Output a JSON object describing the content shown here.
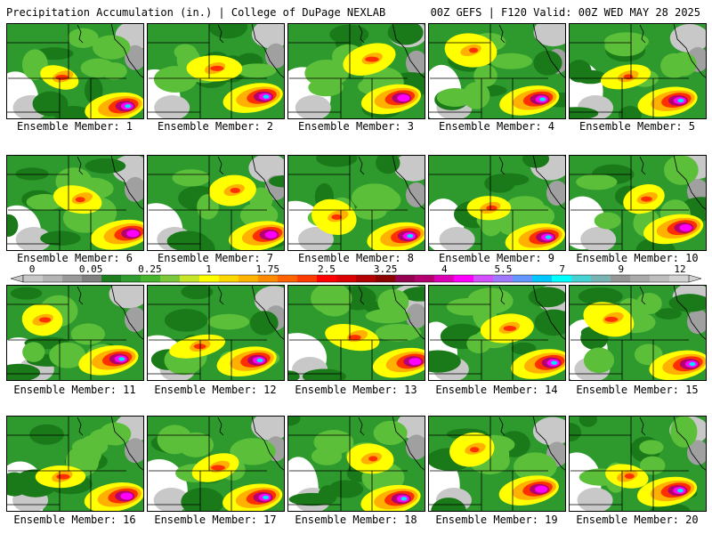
{
  "header": {
    "left": "Precipitation Accumulation (in.) | College of DuPage NEXLAB",
    "right": "00Z GEFS | F120 Valid: 00Z WED MAY 28 2025"
  },
  "member_label_prefix": "Ensemble Member: ",
  "members": [
    "1",
    "2",
    "3",
    "4",
    "5",
    "6",
    "7",
    "8",
    "9",
    "10",
    "11",
    "12",
    "13",
    "14",
    "15",
    "16",
    "17",
    "18",
    "19",
    "20"
  ],
  "colorbar": {
    "tick_labels": [
      "0",
      "0.05",
      "0.25",
      "1",
      "1.75",
      "2.5",
      "3.25",
      "4",
      "5.5",
      "7",
      "9",
      "12"
    ],
    "colors": [
      "#c8c8c8",
      "#b4b4b4",
      "#9a9a9a",
      "#808080",
      "#1e7d1e",
      "#2f9a2f",
      "#46b42e",
      "#7cc83c",
      "#c8e628",
      "#ffff00",
      "#ffd700",
      "#ffb400",
      "#ff8c00",
      "#ff6400",
      "#ff3c00",
      "#ff0000",
      "#dc0000",
      "#b40000",
      "#8c0000",
      "#960050",
      "#b4006e",
      "#dc00b4",
      "#ff00ff",
      "#d250ff",
      "#a078ff",
      "#6496ff",
      "#00c8ff",
      "#00ffff",
      "#46d2d2",
      "#78b4b4",
      "#969696",
      "#aaaaaa",
      "#bebebe",
      "#d2d2d2"
    ]
  },
  "chart_data": {
    "type": "heatmap",
    "title": "Precipitation Accumulation (in.) | College of DuPage NEXLAB",
    "subtitle": "00Z GEFS | F120 Valid: 00Z WED MAY 28 2025",
    "panels": [
      "Ensemble Member: 1",
      "Ensemble Member: 2",
      "Ensemble Member: 3",
      "Ensemble Member: 4",
      "Ensemble Member: 5",
      "Ensemble Member: 6",
      "Ensemble Member: 7",
      "Ensemble Member: 8",
      "Ensemble Member: 9",
      "Ensemble Member: 10",
      "Ensemble Member: 11",
      "Ensemble Member: 12",
      "Ensemble Member: 13",
      "Ensemble Member: 14",
      "Ensemble Member: 15",
      "Ensemble Member: 16",
      "Ensemble Member: 17",
      "Ensemble Member: 18",
      "Ensemble Member: 19",
      "Ensemble Member: 20"
    ],
    "colorbar_levels": [
      0,
      0.05,
      0.25,
      1,
      1.75,
      2.5,
      3.25,
      4,
      5.5,
      7,
      9,
      12
    ],
    "units": "in."
  }
}
